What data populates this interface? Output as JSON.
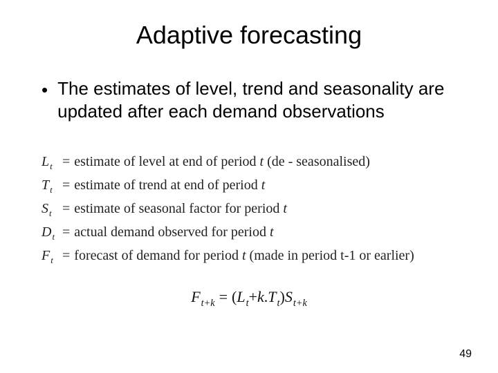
{
  "title": "Adaptive forecasting",
  "bullet": {
    "marker": "•",
    "text": "The estimates of level, trend and seasonality are updated after each demand observations"
  },
  "definitions": [
    {
      "symbol": "L",
      "subscript": "t",
      "desc": "estimate of level at end of period ",
      "tail_italic": "t",
      "tail_plain": " (de - seasonalised)"
    },
    {
      "symbol": "T",
      "subscript": "t",
      "desc": "estimate of trend at end of period ",
      "tail_italic": "t",
      "tail_plain": ""
    },
    {
      "symbol": "S",
      "subscript": "t",
      "desc": "estimate of seasonal factor for period ",
      "tail_italic": "t",
      "tail_plain": ""
    },
    {
      "symbol": "D",
      "subscript": "t",
      "desc": "actual demand observed for period ",
      "tail_italic": "t",
      "tail_plain": ""
    },
    {
      "symbol": "F",
      "subscript": "t",
      "desc": "forecast of demand for period ",
      "tail_italic": "t",
      "tail_plain": " (made in period t-1 or earlier)"
    }
  ],
  "formula": {
    "lhs_symbol": "F",
    "lhs_sub": "t+k",
    "eq": "=",
    "open": "(",
    "L": "L",
    "L_sub": "t",
    "plus": " + ",
    "k": "k",
    "dot": ".",
    "T": "T",
    "T_sub": "t",
    "close": ")",
    "S": "S",
    "S_sub": "t+k"
  },
  "page_number": "49",
  "colors": {
    "background": "#ffffff",
    "text": "#000000",
    "math_text": "#222222"
  },
  "fonts": {
    "title_size_pt": 36,
    "body_size_pt": 26,
    "math_size_pt": 20,
    "formula_size_pt": 22,
    "title_family": "Arial",
    "math_family": "Times New Roman"
  }
}
